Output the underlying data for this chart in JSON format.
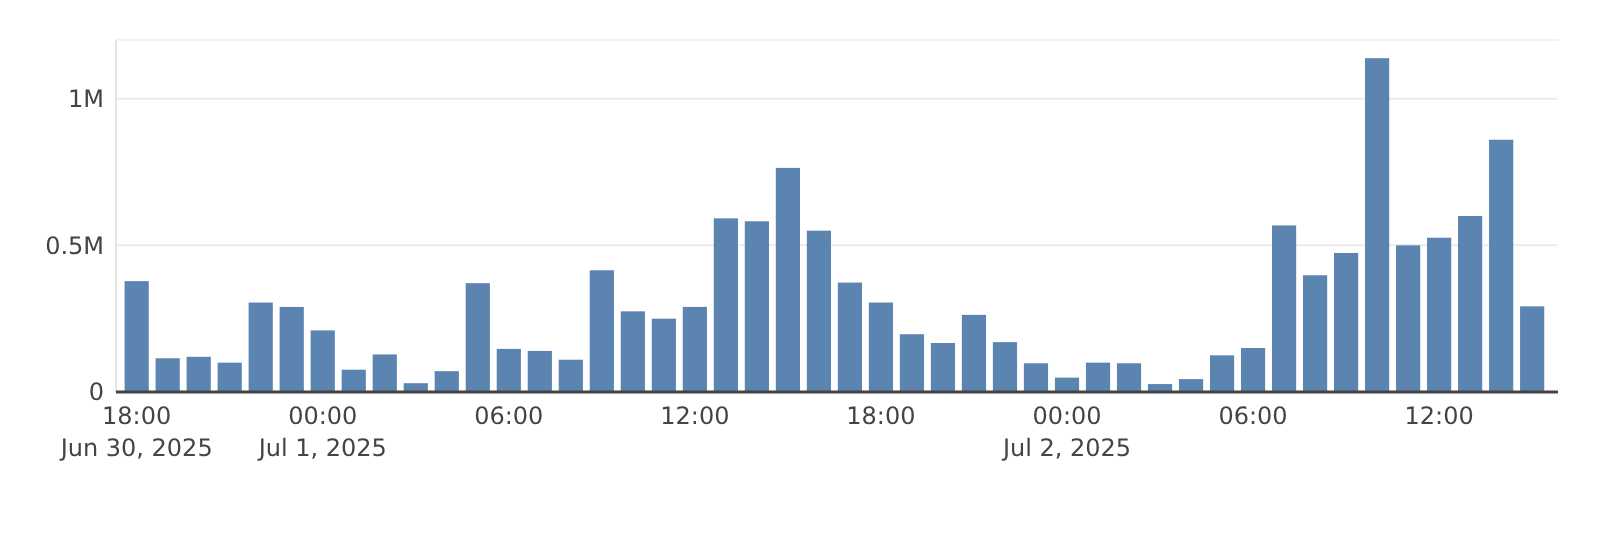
{
  "chart_data": {
    "type": "bar",
    "x": [
      "2025-06-30T18:00",
      "2025-06-30T19:00",
      "2025-06-30T20:00",
      "2025-06-30T21:00",
      "2025-06-30T22:00",
      "2025-06-30T23:00",
      "2025-07-01T00:00",
      "2025-07-01T01:00",
      "2025-07-01T02:00",
      "2025-07-01T03:00",
      "2025-07-01T04:00",
      "2025-07-01T05:00",
      "2025-07-01T06:00",
      "2025-07-01T07:00",
      "2025-07-01T08:00",
      "2025-07-01T09:00",
      "2025-07-01T10:00",
      "2025-07-01T11:00",
      "2025-07-01T12:00",
      "2025-07-01T13:00",
      "2025-07-01T14:00",
      "2025-07-01T15:00",
      "2025-07-01T16:00",
      "2025-07-01T17:00",
      "2025-07-01T18:00",
      "2025-07-01T19:00",
      "2025-07-01T20:00",
      "2025-07-01T21:00",
      "2025-07-01T22:00",
      "2025-07-01T23:00",
      "2025-07-02T00:00",
      "2025-07-02T01:00",
      "2025-07-02T02:00",
      "2025-07-02T03:00",
      "2025-07-02T04:00",
      "2025-07-02T05:00",
      "2025-07-02T06:00",
      "2025-07-02T07:00",
      "2025-07-02T08:00",
      "2025-07-02T09:00",
      "2025-07-02T10:00",
      "2025-07-02T11:00",
      "2025-07-02T12:00",
      "2025-07-02T13:00",
      "2025-07-02T14:00",
      "2025-07-02T15:00"
    ],
    "values": [
      378000,
      115000,
      120000,
      100000,
      305000,
      290000,
      210000,
      76000,
      128000,
      30000,
      71000,
      371000,
      147000,
      140000,
      110000,
      415000,
      275000,
      250000,
      290000,
      592000,
      582000,
      764000,
      550000,
      373000,
      305000,
      197000,
      167000,
      263000,
      170000,
      98000,
      49000,
      100000,
      98000,
      27000,
      44000,
      125000,
      150000,
      568000,
      398000,
      474000,
      1138000,
      500000,
      526000,
      600000,
      860000,
      292000
    ],
    "color": "#5b84b1",
    "xlim": [
      "2025-06-30T17:20",
      "2025-07-02T15:50"
    ],
    "xticks": [
      {
        "value": "2025-06-30T18:00",
        "label": "18:00\nJun 30, 2025"
      },
      {
        "value": "2025-07-01T00:00",
        "label": "00:00\nJul 1, 2025"
      },
      {
        "value": "2025-07-01T06:00",
        "label": "06:00"
      },
      {
        "value": "2025-07-01T12:00",
        "label": "12:00"
      },
      {
        "value": "2025-07-01T18:00",
        "label": "18:00"
      },
      {
        "value": "2025-07-02T00:00",
        "label": "00:00\nJul 2, 2025"
      },
      {
        "value": "2025-07-02T06:00",
        "label": "06:00"
      },
      {
        "value": "2025-07-02T12:00",
        "label": "12:00"
      }
    ],
    "ylim": [
      0,
      1200000
    ],
    "yticks": [
      {
        "value": 0,
        "label": "0"
      },
      {
        "value": 500000,
        "label": "0.5M"
      },
      {
        "value": 1000000,
        "label": "1M"
      }
    ],
    "grid": "y"
  }
}
